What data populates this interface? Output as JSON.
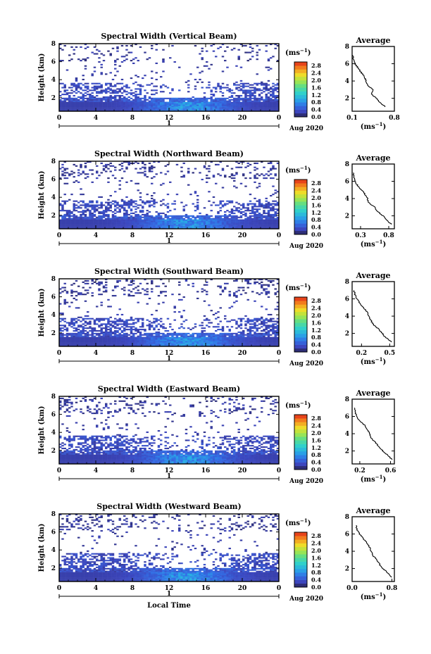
{
  "chart_data": [
    {
      "type": "heatmap",
      "title": "Spectral Width (Vertical Beam)",
      "ylabel": "Height (km)",
      "x_ticks": [
        "0",
        "4",
        "8",
        "12",
        "16",
        "20",
        "0"
      ],
      "y_ticks": [
        "2",
        "4",
        "6",
        "8"
      ],
      "xlim": [
        0,
        24
      ],
      "ylim": [
        0.5,
        8
      ],
      "day_label": "1",
      "month_label": "Aug 2020",
      "colorbar": {
        "unit": "(ms",
        "unit_sup": "−1",
        "unit_close": ")",
        "ticks": [
          "0.0",
          "0.4",
          "0.8",
          "1.2",
          "1.6",
          "2.0",
          "2.4",
          "2.8"
        ],
        "range": [
          0,
          3.0
        ]
      },
      "average": {
        "title": "Average",
        "xticks": [
          "0.1",
          "0.8"
        ],
        "xlim": [
          0.1,
          0.8
        ],
        "ylim": [
          0.5,
          8
        ],
        "yticks": [
          "2",
          "4",
          "6",
          "8"
        ],
        "xlabel": "(ms",
        "xlabel_sup": "−1",
        "xlabel_close": ")",
        "profile": [
          [
            0.65,
            1.0
          ],
          [
            0.55,
            1.6
          ],
          [
            0.5,
            2.0
          ],
          [
            0.42,
            2.5
          ],
          [
            0.45,
            3.0
          ],
          [
            0.35,
            3.5
          ],
          [
            0.33,
            4.0
          ],
          [
            0.3,
            4.5
          ],
          [
            0.25,
            5.0
          ],
          [
            0.2,
            5.5
          ],
          [
            0.15,
            6.0
          ],
          [
            0.12,
            6.5
          ],
          [
            0.11,
            7.0
          ]
        ]
      }
    },
    {
      "type": "heatmap",
      "title": "Spectral Width (Northward Beam)",
      "ylabel": "Height (km)",
      "x_ticks": [
        "0",
        "4",
        "8",
        "12",
        "16",
        "20",
        "0"
      ],
      "y_ticks": [
        "2",
        "4",
        "6",
        "8"
      ],
      "xlim": [
        0,
        24
      ],
      "ylim": [
        0.5,
        8
      ],
      "day_label": "1",
      "month_label": "Aug 2020",
      "colorbar": {
        "unit": "(ms",
        "unit_sup": "−1",
        "unit_close": ")",
        "ticks": [
          "0.0",
          "0.4",
          "0.8",
          "1.2",
          "1.6",
          "2.0",
          "2.4",
          "2.8"
        ],
        "range": [
          0,
          3.0
        ]
      },
      "average": {
        "title": "Average",
        "xticks": [
          "0.3",
          "0.8"
        ],
        "xlim": [
          0.15,
          0.9
        ],
        "ylim": [
          0.5,
          8
        ],
        "yticks": [
          "2",
          "4",
          "6",
          "8"
        ],
        "xlabel": "(ms",
        "xlabel_sup": "−1",
        "xlabel_close": ")",
        "profile": [
          [
            0.85,
            1.0
          ],
          [
            0.75,
            1.6
          ],
          [
            0.7,
            2.0
          ],
          [
            0.6,
            2.5
          ],
          [
            0.55,
            3.0
          ],
          [
            0.45,
            3.5
          ],
          [
            0.42,
            4.0
          ],
          [
            0.38,
            4.5
          ],
          [
            0.32,
            5.0
          ],
          [
            0.25,
            5.5
          ],
          [
            0.2,
            6.0
          ],
          [
            0.18,
            6.5
          ],
          [
            0.17,
            7.0
          ]
        ]
      }
    },
    {
      "type": "heatmap",
      "title": "Spectral Width (Southward Beam)",
      "ylabel": "Height (km)",
      "x_ticks": [
        "0",
        "4",
        "8",
        "12",
        "16",
        "20",
        "0"
      ],
      "y_ticks": [
        "2",
        "4",
        "6",
        "8"
      ],
      "xlim": [
        0,
        24
      ],
      "ylim": [
        0.5,
        8
      ],
      "day_label": "1",
      "month_label": "Aug 2020",
      "colorbar": {
        "unit": "(ms",
        "unit_sup": "−1",
        "unit_close": ")",
        "ticks": [
          "0.0",
          "0.4",
          "0.8",
          "1.2",
          "1.6",
          "2.0",
          "2.4",
          "2.8"
        ],
        "range": [
          0,
          3.0
        ]
      },
      "average": {
        "title": "Average",
        "xticks": [
          "0.2",
          "0.5"
        ],
        "xlim": [
          0.1,
          0.55
        ],
        "ylim": [
          0.5,
          8
        ],
        "yticks": [
          "2",
          "4",
          "6",
          "8"
        ],
        "xlabel": "(ms",
        "xlabel_sup": "−1",
        "xlabel_close": ")",
        "profile": [
          [
            0.52,
            1.0
          ],
          [
            0.45,
            1.6
          ],
          [
            0.42,
            2.0
          ],
          [
            0.38,
            2.5
          ],
          [
            0.33,
            3.0
          ],
          [
            0.3,
            3.5
          ],
          [
            0.28,
            4.0
          ],
          [
            0.26,
            4.5
          ],
          [
            0.22,
            5.0
          ],
          [
            0.18,
            5.5
          ],
          [
            0.15,
            6.0
          ],
          [
            0.13,
            6.5
          ],
          [
            0.12,
            7.0
          ]
        ]
      }
    },
    {
      "type": "heatmap",
      "title": "Spectral Width (Eastward Beam)",
      "ylabel": "Height (km)",
      "x_ticks": [
        "0",
        "4",
        "8",
        "12",
        "16",
        "20",
        "0"
      ],
      "y_ticks": [
        "2",
        "4",
        "6",
        "8"
      ],
      "xlim": [
        0,
        24
      ],
      "ylim": [
        0.5,
        8
      ],
      "day_label": "1",
      "month_label": "Aug 2020",
      "colorbar": {
        "unit": "(ms",
        "unit_sup": "−1",
        "unit_close": ")",
        "ticks": [
          "0.0",
          "0.4",
          "0.8",
          "1.2",
          "1.6",
          "2.0",
          "2.4",
          "2.8"
        ],
        "range": [
          0,
          3.0
        ]
      },
      "average": {
        "title": "Average",
        "xticks": [
          "0.2",
          "0.6"
        ],
        "xlim": [
          0.1,
          0.65
        ],
        "ylim": [
          0.5,
          8
        ],
        "yticks": [
          "2",
          "4",
          "6",
          "8"
        ],
        "xlabel": "(ms",
        "xlabel_sup": "−1",
        "xlabel_close": ")",
        "profile": [
          [
            0.62,
            1.0
          ],
          [
            0.55,
            1.6
          ],
          [
            0.5,
            2.0
          ],
          [
            0.45,
            2.5
          ],
          [
            0.4,
            3.0
          ],
          [
            0.35,
            3.5
          ],
          [
            0.33,
            4.0
          ],
          [
            0.3,
            4.5
          ],
          [
            0.26,
            5.0
          ],
          [
            0.2,
            5.5
          ],
          [
            0.16,
            6.0
          ],
          [
            0.14,
            6.5
          ],
          [
            0.13,
            7.0
          ]
        ]
      }
    },
    {
      "type": "heatmap",
      "title": "Spectral Width (Westward Beam)",
      "ylabel": "Height (km)",
      "x_ticks": [
        "0",
        "4",
        "8",
        "12",
        "16",
        "20",
        "0"
      ],
      "y_ticks": [
        "2",
        "4",
        "6",
        "8"
      ],
      "xlim": [
        0,
        24
      ],
      "ylim": [
        0.5,
        8
      ],
      "day_label": "1",
      "month_label": "Aug 2020",
      "xlabel": "Local Time",
      "colorbar": {
        "unit": "(ms",
        "unit_sup": "−1",
        "unit_close": ")",
        "ticks": [
          "0.0",
          "0.4",
          "0.8",
          "1.2",
          "1.6",
          "2.0",
          "2.4",
          "2.8"
        ],
        "range": [
          0,
          3.0
        ]
      },
      "average": {
        "title": "Average",
        "xticks": [
          "0.0",
          "0.8"
        ],
        "xlim": [
          0.0,
          0.85
        ],
        "ylim": [
          0.5,
          8
        ],
        "yticks": [
          "2",
          "4",
          "6",
          "8"
        ],
        "xlabel": "(ms",
        "xlabel_sup": "−1",
        "xlabel_close": ")",
        "profile": [
          [
            0.8,
            1.0
          ],
          [
            0.7,
            1.6
          ],
          [
            0.62,
            2.0
          ],
          [
            0.55,
            2.5
          ],
          [
            0.5,
            3.0
          ],
          [
            0.42,
            3.5
          ],
          [
            0.38,
            4.0
          ],
          [
            0.35,
            4.5
          ],
          [
            0.3,
            5.0
          ],
          [
            0.22,
            5.5
          ],
          [
            0.15,
            6.0
          ],
          [
            0.1,
            6.5
          ],
          [
            0.08,
            7.0
          ]
        ]
      }
    }
  ]
}
